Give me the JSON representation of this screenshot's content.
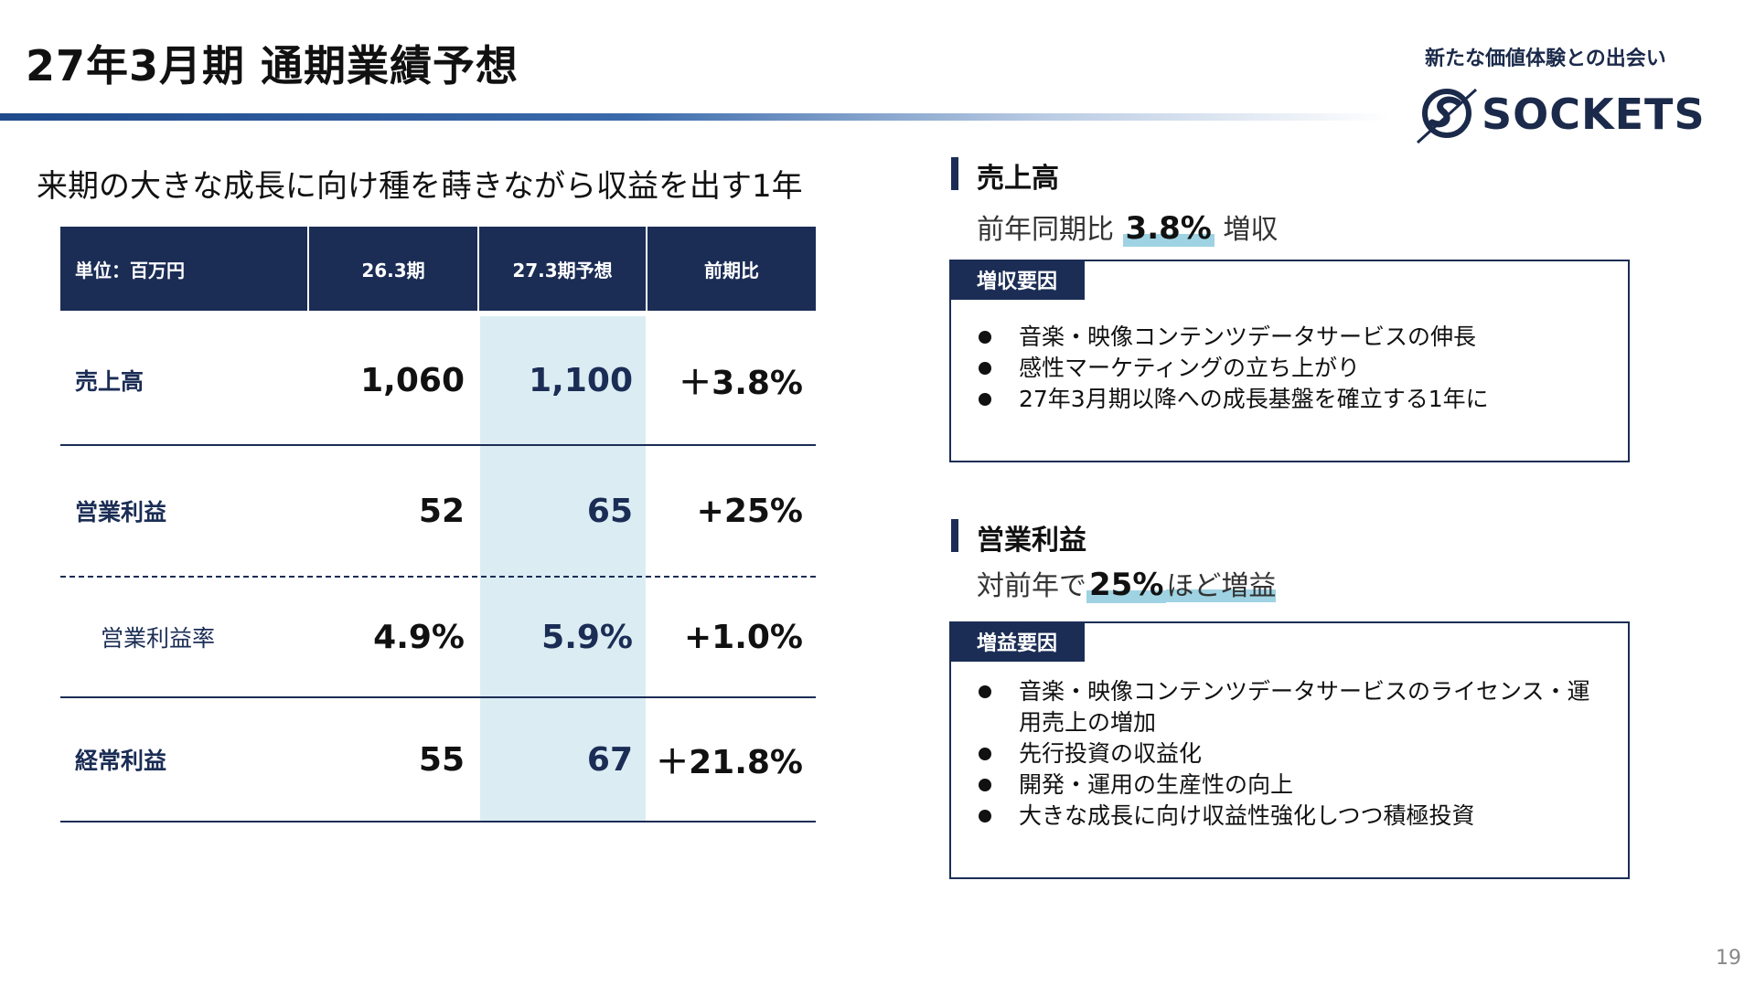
{
  "header": {
    "title": "27年3月期 通期業績予想",
    "tagline": "新たな価値体験との出会い",
    "logo_text": "SOCKETS"
  },
  "headline": "来期の大きな成長に向け種を蒔きながら収益を出す1年",
  "table": {
    "headers": [
      "単位：百万円",
      "26.3期",
      "27.3期予想",
      "前期比"
    ],
    "rows": [
      {
        "label": "売上高",
        "fy26": "1,060",
        "fy27": "1,100",
        "change": "＋3.8%"
      },
      {
        "label": "営業利益",
        "fy26": "52",
        "fy27": "65",
        "change": "+25%"
      },
      {
        "label": "営業利益率",
        "fy26": "4.9%",
        "fy27": "5.9%",
        "change": "+1.0%"
      },
      {
        "label": "経常利益",
        "fy26": "55",
        "fy27": "67",
        "change": "＋21.8%"
      }
    ]
  },
  "sections": {
    "sales": {
      "title": "売上高",
      "lead_prefix": "前年同期比",
      "lead_value": "3.8%",
      "lead_suffix": "増収",
      "box_tag": "増収要因",
      "bullets": [
        "音楽・映像コンテンツデータサービスの伸長",
        "感性マーケティングの立ち上がり",
        "27年3月期以降への成長基盤を確立する1年に"
      ]
    },
    "profit": {
      "title": "営業利益",
      "lead_prefix": "対前年で",
      "lead_value": "25%",
      "lead_suffix": "ほど増益",
      "box_tag": "増益要因",
      "bullets": [
        "音楽・映像コンテンツデータサービスのライセンス・運用売上の増加",
        "先行投資の収益化",
        "開発・運用の生産性の向上",
        "大きな成長に向け収益性強化しつつ積極投資"
      ]
    }
  },
  "page_number": "19",
  "colors": {
    "navy": "#1b2d55",
    "highlight_column": "#dbedf3",
    "marker": "#9fd3e3"
  }
}
